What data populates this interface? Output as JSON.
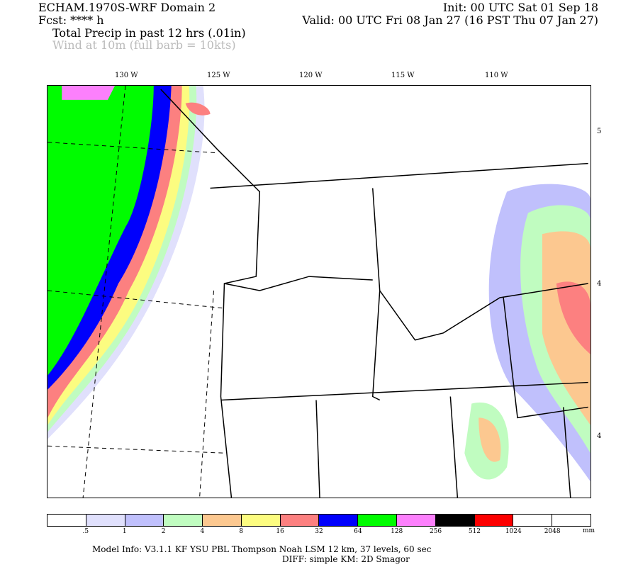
{
  "header": {
    "model": "ECHAM.1970S-WRF Domain 2",
    "init": "Init: 00 UTC Sat 01 Sep 18",
    "fcst": "Fcst: **** h",
    "valid": "Valid: 00 UTC Fri 08 Jan 27 (16 PST Thu 07 Jan 27)",
    "field1": "Total Precip in past 12 hrs (.01in)",
    "field2": "Wind at 10m (full barb = 10kts)"
  },
  "lon_labels": [
    "130 W",
    "125 W",
    "120 W",
    "115 W",
    "110 W"
  ],
  "lat_labels": [
    "5",
    "4",
    "4"
  ],
  "legend": {
    "colors": [
      "#ffffff",
      "#e0e0fc",
      "#c0c0fc",
      "#c0fcc0",
      "#fcc890",
      "#fcfc80",
      "#fc8080",
      "#0000fc",
      "#00fc00",
      "#fc80fc",
      "#000000",
      "#fc0000",
      "#ffffff",
      "#ffffff"
    ],
    "labels": [
      ".5",
      "1",
      "2",
      "4",
      "8",
      "16",
      "32",
      "64",
      "128",
      "256",
      "512",
      "1024",
      "2048"
    ],
    "unit": "mm"
  },
  "footer": {
    "line1": "Model Info: V3.1.1    KF       YSU PBL   Thompson     Noah LSM   12 km,     37 levels,     60 sec",
    "line2": "DIFF: simple KM: 2D Smagor"
  }
}
